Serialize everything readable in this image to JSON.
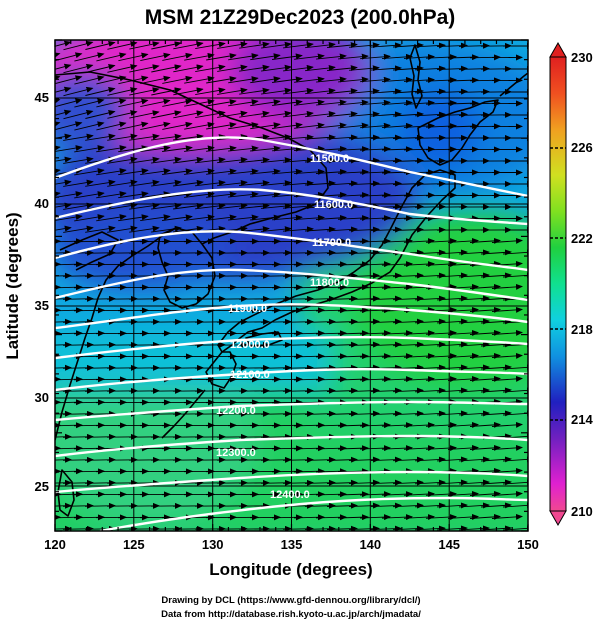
{
  "title": "MSM 21Z29Dec2023 (200.0hPa)",
  "xlabel": "Longitude (degrees)",
  "ylabel": "Latitude  (degrees)",
  "x_ticks": [
    "120",
    "125",
    "130",
    "135",
    "140",
    "145",
    "150"
  ],
  "y_ticks": [
    "25",
    "30",
    "35",
    "40",
    "45"
  ],
  "colorbar": {
    "ticks": [
      "230",
      "226",
      "222",
      "218",
      "214",
      "210"
    ],
    "range": [
      210,
      230
    ],
    "colors": [
      "#f04890",
      "#e020d0",
      "#7020c0",
      "#2020c0",
      "#1090e0",
      "#10d0e0",
      "#10e090",
      "#20d040",
      "#80e020",
      "#d0e020",
      "#f0a020",
      "#f05020",
      "#e02020"
    ]
  },
  "contour_labels": [
    {
      "text": "11500.0"
    },
    {
      "text": "11600.0"
    },
    {
      "text": "11700.0"
    },
    {
      "text": "11800.0"
    },
    {
      "text": "11900.0"
    },
    {
      "text": "12000.0"
    },
    {
      "text": "12100.0"
    },
    {
      "text": "12200.0"
    },
    {
      "text": "12300.0"
    },
    {
      "text": "12400.0"
    }
  ],
  "credits": [
    "Drawing by DCL (https://www.gfd-dennou.org/library/dcl/)",
    "Data from http://database.rish.kyoto-u.ac.jp/arch/jmadata/"
  ]
}
